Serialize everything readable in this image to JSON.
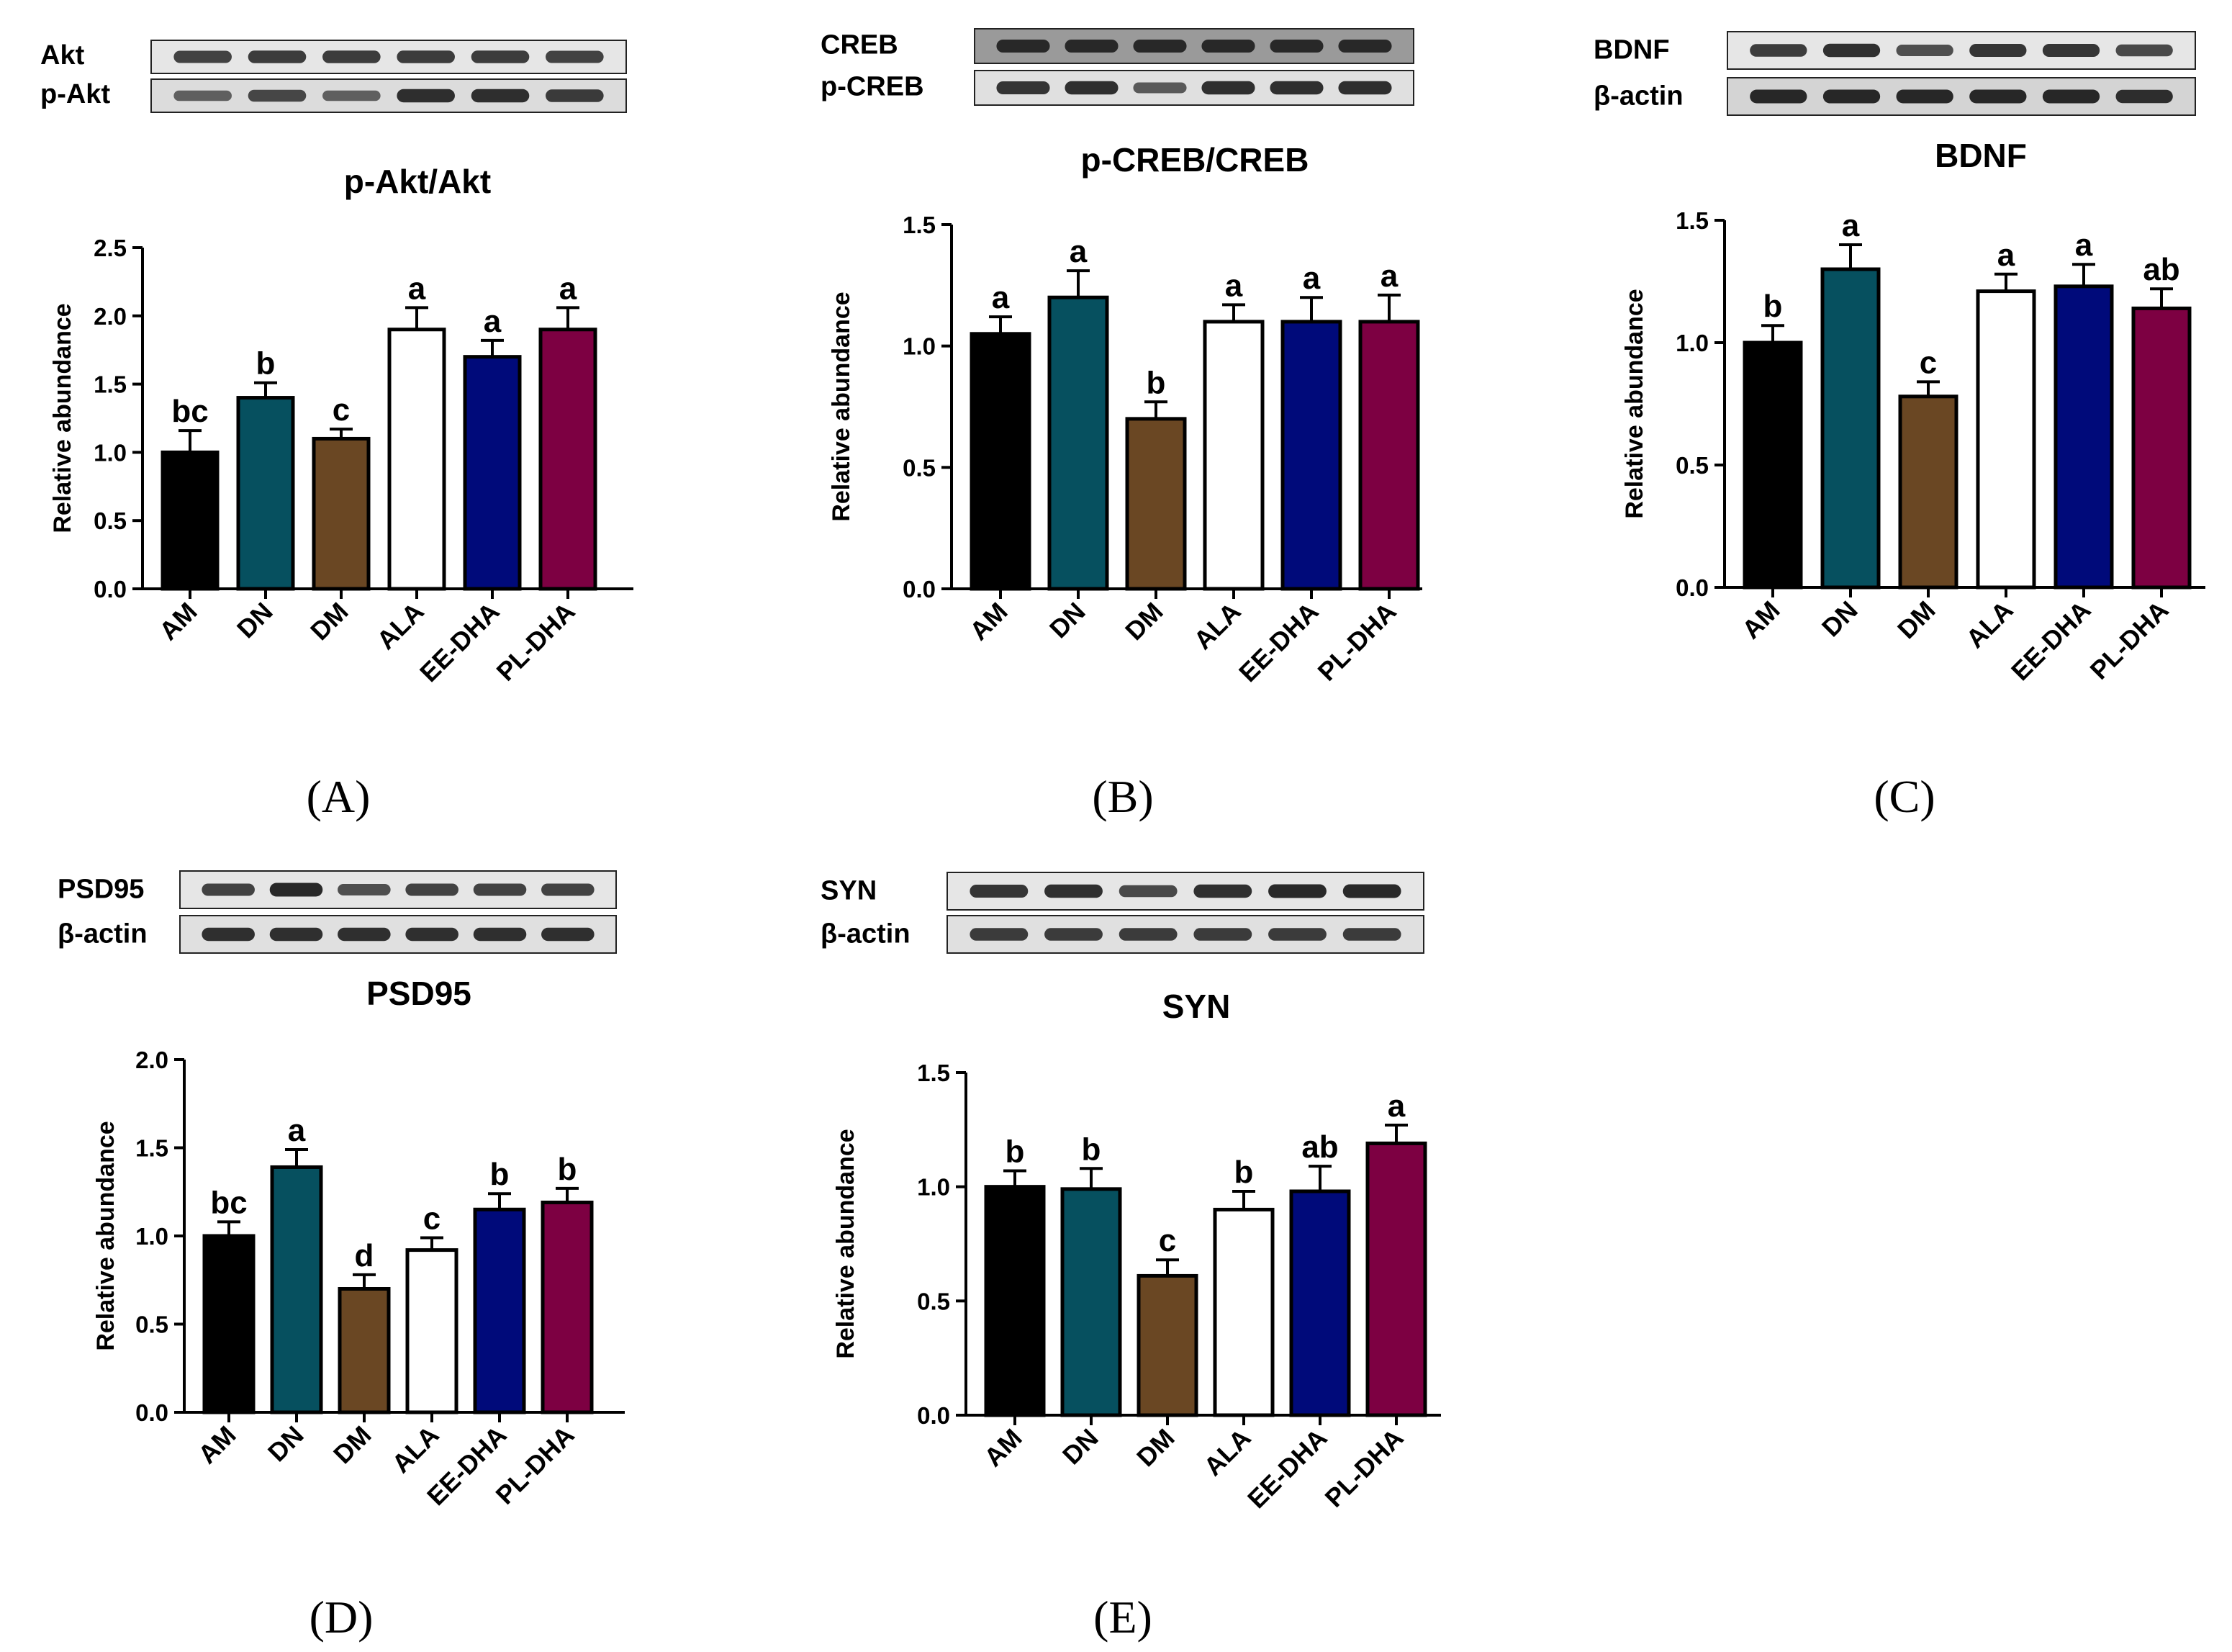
{
  "figure": {
    "group_colors": [
      "#000000",
      "#06505f",
      "#6a4723",
      "#ffffff",
      "#000a7a",
      "#7d0042"
    ],
    "panels": [
      {
        "letter": "(A)",
        "blots": [
          {
            "label": "Akt",
            "background": "#e6e6e6",
            "bands": [
              0.7,
              0.75,
              0.75,
              0.75,
              0.75,
              0.7
            ]
          },
          {
            "label": "p-Akt",
            "background": "#dcdcdc",
            "bands": [
              0.45,
              0.65,
              0.45,
              0.85,
              0.85,
              0.75
            ]
          }
        ],
        "chart_data": {
          "type": "bar",
          "title": "p-Akt/Akt",
          "ylabel": "Relative abundance",
          "xlabel": "",
          "categories": [
            "AM",
            "DN",
            "DM",
            "ALA",
            "EE-DHA",
            "PL-DHA"
          ],
          "values": [
            1.0,
            1.4,
            1.1,
            1.9,
            1.7,
            1.9
          ],
          "errors": [
            0.16,
            0.11,
            0.07,
            0.16,
            0.12,
            0.16
          ],
          "significance": [
            "bc",
            "b",
            "c",
            "a",
            "a",
            "a"
          ],
          "ylim": [
            0,
            2.5
          ],
          "yticks": [
            "0.0",
            "0.5",
            "1.0",
            "1.5",
            "2.0",
            "2.5"
          ]
        }
      },
      {
        "letter": "(B)",
        "blots": [
          {
            "label": "CREB",
            "background": "#9a9a9a",
            "bands": [
              0.8,
              0.8,
              0.8,
              0.8,
              0.8,
              0.8
            ]
          },
          {
            "label": "p-CREB",
            "background": "#e0e0e0",
            "bands": [
              0.8,
              0.85,
              0.5,
              0.85,
              0.85,
              0.85
            ]
          }
        ],
        "chart_data": {
          "type": "bar",
          "title": "p-CREB/CREB",
          "ylabel": "Relative abundance",
          "xlabel": "",
          "categories": [
            "AM",
            "DN",
            "DM",
            "ALA",
            "EE-DHA",
            "PL-DHA"
          ],
          "values": [
            1.05,
            1.2,
            0.7,
            1.1,
            1.1,
            1.1
          ],
          "errors": [
            0.07,
            0.11,
            0.07,
            0.07,
            0.1,
            0.11
          ],
          "significance": [
            "a",
            "a",
            "b",
            "a",
            "a",
            "a"
          ],
          "ylim": [
            0,
            1.5
          ],
          "yticks": [
            "0.0",
            "0.5",
            "1.0",
            "1.5"
          ]
        }
      },
      {
        "letter": "(C)",
        "blots": [
          {
            "label": "BDNF",
            "background": "#e6e6e6",
            "bands": [
              0.75,
              0.85,
              0.6,
              0.8,
              0.8,
              0.65
            ]
          },
          {
            "label": "β-actin",
            "background": "#d4d4d4",
            "bands": [
              0.9,
              0.9,
              0.9,
              0.9,
              0.9,
              0.85
            ]
          }
        ],
        "chart_data": {
          "type": "bar",
          "title": "BDNF",
          "ylabel": "Relative abundance",
          "xlabel": "",
          "categories": [
            "AM",
            "DN",
            "DM",
            "ALA",
            "EE-DHA",
            "PL-DHA"
          ],
          "values": [
            1.0,
            1.3,
            0.78,
            1.21,
            1.23,
            1.14
          ],
          "errors": [
            0.07,
            0.1,
            0.06,
            0.07,
            0.09,
            0.08
          ],
          "significance": [
            "b",
            "a",
            "c",
            "a",
            "a",
            "ab"
          ],
          "ylim": [
            0,
            1.5
          ],
          "yticks": [
            "0.0",
            "0.5",
            "1.0",
            "1.5"
          ]
        }
      },
      {
        "letter": "(D)",
        "blots": [
          {
            "label": "PSD95",
            "background": "#e6e6e6",
            "bands": [
              0.7,
              0.9,
              0.6,
              0.7,
              0.7,
              0.7
            ]
          },
          {
            "label": "β-actin",
            "background": "#e0e0e0",
            "bands": [
              0.85,
              0.85,
              0.85,
              0.85,
              0.85,
              0.85
            ]
          }
        ],
        "chart_data": {
          "type": "bar",
          "title": "PSD95",
          "ylabel": "Relative abundance",
          "xlabel": "",
          "categories": [
            "AM",
            "DN",
            "DM",
            "ALA",
            "EE-DHA",
            "PL-DHA"
          ],
          "values": [
            1.0,
            1.39,
            0.7,
            0.92,
            1.15,
            1.19
          ],
          "errors": [
            0.08,
            0.1,
            0.08,
            0.07,
            0.09,
            0.08
          ],
          "significance": [
            "bc",
            "a",
            "d",
            "c",
            "b",
            "b"
          ],
          "ylim": [
            0,
            2.0
          ],
          "yticks": [
            "0.0",
            "0.5",
            "1.0",
            "1.5",
            "2.0"
          ]
        }
      },
      {
        "letter": "(E)",
        "blots": [
          {
            "label": "SYN",
            "background": "#e6e6e6",
            "bands": [
              0.8,
              0.85,
              0.65,
              0.85,
              0.9,
              0.9
            ]
          },
          {
            "label": "β-actin",
            "background": "#e0e0e0",
            "bands": [
              0.75,
              0.75,
              0.75,
              0.75,
              0.75,
              0.75
            ]
          }
        ],
        "chart_data": {
          "type": "bar",
          "title": "SYN",
          "ylabel": "Relative abundance",
          "xlabel": "",
          "categories": [
            "AM",
            "DN",
            "DM",
            "ALA",
            "EE-DHA",
            "PL-DHA"
          ],
          "values": [
            1.0,
            0.99,
            0.61,
            0.9,
            0.98,
            1.19
          ],
          "errors": [
            0.07,
            0.09,
            0.07,
            0.08,
            0.11,
            0.08
          ],
          "significance": [
            "b",
            "b",
            "c",
            "b",
            "ab",
            "a"
          ],
          "ylim": [
            0,
            1.5
          ],
          "yticks": [
            "0.0",
            "0.5",
            "1.0",
            "1.5"
          ]
        }
      }
    ]
  }
}
